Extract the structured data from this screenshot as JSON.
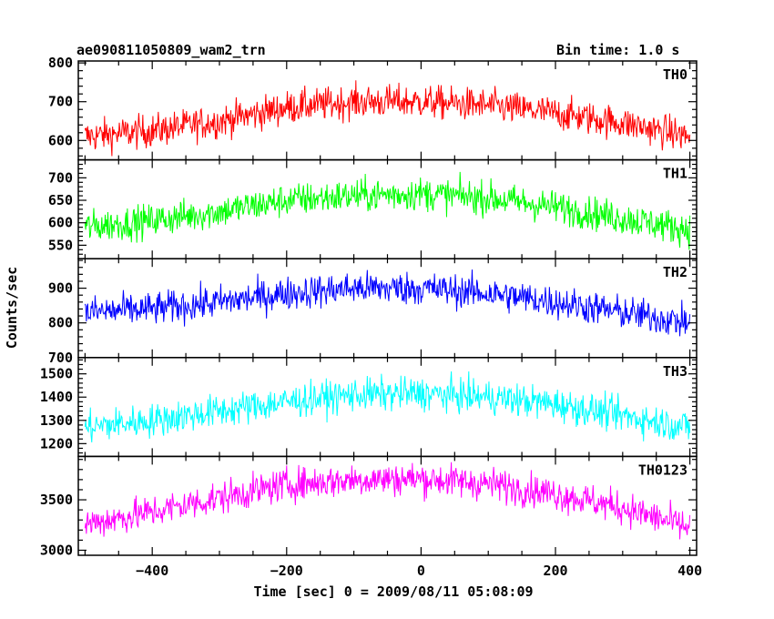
{
  "header": {
    "title": "ae090811050809_wam2_trn",
    "bin_time": "Bin time: 1.0 s"
  },
  "chart_data": {
    "type": "line",
    "title": "ae090811050809_wam2_trn",
    "subtitle": "Bin time: 1.0 s",
    "xlabel": "Time [sec] 0 = 2009/08/11 05:08:09",
    "ylabel": "Counts/sec",
    "xlim": [
      -510,
      410
    ],
    "x_ticks": [
      -400,
      -200,
      0,
      200,
      400
    ],
    "grid": false,
    "panels": [
      {
        "name": "TH0",
        "color": "#ff0000",
        "ylim": [
          550,
          805
        ],
        "y_ticks": [
          600,
          700,
          800
        ],
        "trend": [
          [
            -500,
            610
          ],
          [
            -400,
            625
          ],
          [
            -300,
            650
          ],
          [
            -200,
            685
          ],
          [
            -100,
            700
          ],
          [
            0,
            700
          ],
          [
            100,
            690
          ],
          [
            200,
            670
          ],
          [
            300,
            645
          ],
          [
            400,
            610
          ]
        ]
      },
      {
        "name": "TH1",
        "color": "#00ff00",
        "ylim": [
          520,
          740
        ],
        "y_ticks": [
          550,
          600,
          650,
          700
        ],
        "trend": [
          [
            -500,
            590
          ],
          [
            -400,
            605
          ],
          [
            -300,
            625
          ],
          [
            -200,
            650
          ],
          [
            -100,
            660
          ],
          [
            0,
            665
          ],
          [
            100,
            655
          ],
          [
            200,
            635
          ],
          [
            300,
            610
          ],
          [
            400,
            585
          ]
        ]
      },
      {
        "name": "TH2",
        "color": "#0000ff",
        "ylim": [
          700,
          985
        ],
        "y_ticks": [
          700,
          800,
          900
        ],
        "trend": [
          [
            -500,
            830
          ],
          [
            -400,
            840
          ],
          [
            -300,
            860
          ],
          [
            -200,
            885
          ],
          [
            -100,
            900
          ],
          [
            0,
            900
          ],
          [
            100,
            885
          ],
          [
            200,
            860
          ],
          [
            300,
            830
          ],
          [
            400,
            800
          ]
        ]
      },
      {
        "name": "TH3",
        "color": "#00ffff",
        "ylim": [
          1145,
          1570
        ],
        "y_ticks": [
          1200,
          1300,
          1400,
          1500
        ],
        "trend": [
          [
            -500,
            1270
          ],
          [
            -400,
            1300
          ],
          [
            -300,
            1340
          ],
          [
            -200,
            1380
          ],
          [
            -100,
            1410
          ],
          [
            0,
            1415
          ],
          [
            100,
            1400
          ],
          [
            200,
            1370
          ],
          [
            300,
            1320
          ],
          [
            400,
            1270
          ]
        ]
      },
      {
        "name": "TH0123",
        "color": "#ff00ff",
        "ylim": [
          2950,
          3930
        ],
        "y_ticks": [
          3000,
          3500
        ],
        "trend": [
          [
            -500,
            3260
          ],
          [
            -400,
            3380
          ],
          [
            -300,
            3520
          ],
          [
            -200,
            3650
          ],
          [
            -100,
            3700
          ],
          [
            0,
            3710
          ],
          [
            100,
            3660
          ],
          [
            200,
            3560
          ],
          [
            300,
            3420
          ],
          [
            400,
            3220
          ]
        ]
      }
    ]
  }
}
